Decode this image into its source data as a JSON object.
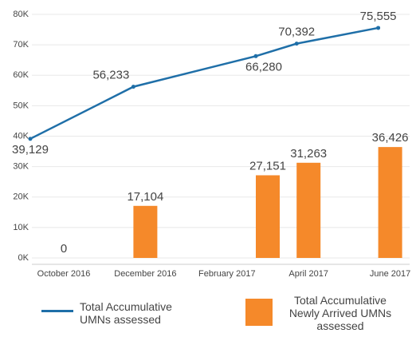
{
  "chart_data": {
    "type": "bar-line",
    "categories": [
      "October 2016",
      null,
      "December 2016",
      null,
      "February 2017",
      null,
      "April 2017",
      null,
      "June 2017"
    ],
    "series": [
      {
        "name": "Total Accumulative UMNs assessed",
        "type": "line",
        "color": "#1f6fa8",
        "values": [
          39129,
          null,
          56233,
          null,
          null,
          66280,
          70392,
          null,
          75555
        ],
        "value_labels": [
          "39,129",
          null,
          "56,233",
          null,
          null,
          "66,280",
          "70,392",
          null,
          "75,555"
        ]
      },
      {
        "name": "Total Accumulative Newly Arrived UMNs assessed",
        "type": "bar",
        "color": "#f5892a",
        "values": [
          0,
          null,
          17104,
          null,
          null,
          27151,
          31263,
          null,
          36426
        ],
        "value_labels": [
          "0",
          null,
          "17,104",
          null,
          null,
          "27,151",
          "31,263",
          null,
          "36,426"
        ]
      }
    ],
    "ylim": [
      0,
      80000
    ],
    "yticks": [
      {
        "value": 0,
        "label": "0K"
      },
      {
        "value": 10000,
        "label": "10K"
      },
      {
        "value": 20000,
        "label": "20K"
      },
      {
        "value": 30000,
        "label": "30K"
      },
      {
        "value": 40000,
        "label": "40K"
      },
      {
        "value": 50000,
        "label": "50K"
      },
      {
        "value": 60000,
        "label": "60K"
      },
      {
        "value": 70000,
        "label": "70K"
      },
      {
        "value": 80000,
        "label": "80K"
      }
    ],
    "grid": true
  }
}
